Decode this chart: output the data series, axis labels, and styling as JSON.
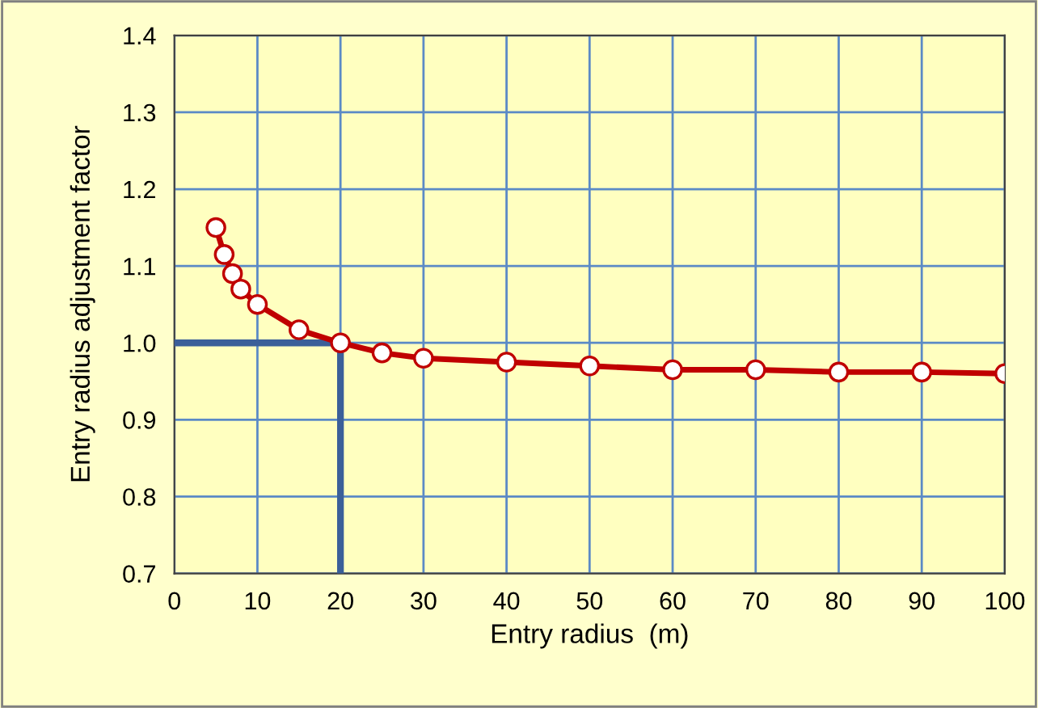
{
  "chart_data": {
    "type": "line",
    "xlabel": "Entry radius  (m)",
    "ylabel": "Entry radius adjustment factor",
    "xlim": [
      0,
      100
    ],
    "xticks": [
      0,
      10,
      20,
      30,
      40,
      50,
      60,
      70,
      80,
      90,
      100
    ],
    "ylim": [
      0.7,
      1.4
    ],
    "yticks": [
      {
        "value": 0.7,
        "label": "0.7"
      },
      {
        "value": 0.8,
        "label": "0.8"
      },
      {
        "value": 0.9,
        "label": "0.9"
      },
      {
        "value": 1,
        "label": "1.0"
      },
      {
        "value": 1.1,
        "label": "1.1"
      },
      {
        "value": 1.2,
        "label": "1.2"
      },
      {
        "value": 1.3,
        "label": "1.3"
      },
      {
        "value": 1.4,
        "label": "1.4"
      }
    ],
    "grid": true,
    "legend": false,
    "series": [
      {
        "color": "#3b5f99",
        "marker": "none",
        "x": [
          0,
          20,
          20
        ],
        "values": [
          1.0,
          1.0,
          0.7
        ]
      },
      {
        "color": "#c00000",
        "marker": "circle",
        "x": [
          5,
          6,
          7,
          8,
          10,
          15,
          20,
          25,
          30,
          40,
          50,
          60,
          70,
          80,
          90,
          100
        ],
        "values": [
          1.15,
          1.115,
          1.09,
          1.07,
          1.05,
          1.017,
          1.0,
          0.987,
          0.98,
          0.975,
          0.97,
          0.965,
          0.965,
          0.962,
          0.962,
          0.96
        ]
      }
    ]
  }
}
